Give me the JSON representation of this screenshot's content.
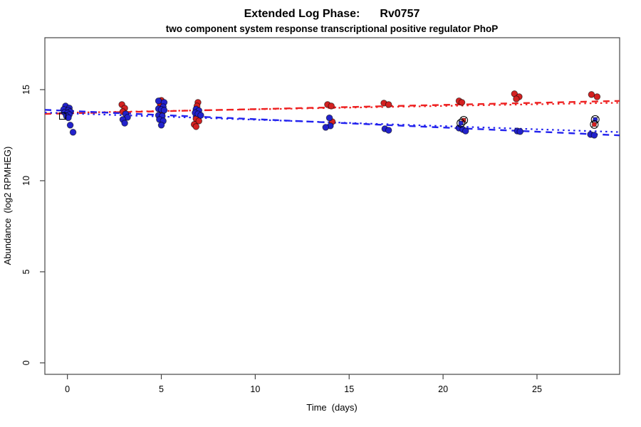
{
  "chart_data": {
    "type": "scatter",
    "title": "Extended Log Phase:      Rv0757",
    "title_left": "Extended Log Phase:",
    "title_right": "Rv0757",
    "subtitle": "two component system response transcriptional positive regulator PhoP",
    "xlabel": "Time  (days)",
    "xlabel_left": "Time",
    "xlabel_right": "(days)",
    "ylabel": "Abundance  (log2 RPMHEG)",
    "ylabel_left": "Abundance",
    "ylabel_right": "(log2 RPMHEG)",
    "xlim": [
      -1.2,
      29.4
    ],
    "ylim": [
      -0.63,
      17.85
    ],
    "x_ticks": [
      0,
      5,
      10,
      15,
      20,
      25
    ],
    "y_ticks": [
      0,
      5,
      10,
      15
    ],
    "grid": false,
    "colors": {
      "red_point": "#d42121",
      "blue_point": "#2222cc",
      "red_line": "#ee2222",
      "blue_line": "#2222ee",
      "frame": "#454545",
      "text": "#000000",
      "background": "#ffffff"
    },
    "trend_lines": [
      {
        "name": "red-dashed",
        "color_key": "red_line",
        "style": "dashed",
        "x": [
          -1.2,
          29.4
        ],
        "y": [
          13.67,
          14.38
        ]
      },
      {
        "name": "red-dotted",
        "color_key": "red_line",
        "style": "dotted",
        "x": [
          -1.2,
          29.4
        ],
        "y": [
          13.71,
          14.28
        ]
      },
      {
        "name": "blue-dashed",
        "color_key": "blue_line",
        "style": "dashed",
        "x": [
          -1.2,
          29.4
        ],
        "y": [
          13.89,
          12.49
        ]
      },
      {
        "name": "blue-dotted",
        "color_key": "blue_line",
        "style": "dotted",
        "x": [
          -1.2,
          29.4
        ],
        "y": [
          13.74,
          12.67
        ]
      }
    ],
    "series": [
      {
        "name": "red",
        "marker": "circle",
        "color_key": "red_point",
        "points": [
          [
            2.9,
            14.18
          ],
          [
            3.05,
            13.98
          ],
          [
            2.95,
            13.79
          ],
          [
            5.0,
            14.41
          ],
          [
            4.95,
            14.18
          ],
          [
            5.05,
            13.77
          ],
          [
            6.95,
            14.3
          ],
          [
            6.9,
            14.1
          ],
          [
            6.85,
            13.4
          ],
          [
            7.0,
            13.28
          ],
          [
            6.75,
            13.09
          ],
          [
            6.85,
            12.97
          ],
          [
            13.85,
            14.18
          ],
          [
            14.05,
            14.1
          ],
          [
            14.1,
            13.24
          ],
          [
            16.85,
            14.26
          ],
          [
            17.1,
            14.18
          ],
          [
            20.85,
            14.38
          ],
          [
            21.0,
            14.3
          ],
          [
            23.8,
            14.77
          ],
          [
            24.05,
            14.61
          ],
          [
            23.9,
            14.49
          ],
          [
            27.9,
            14.73
          ],
          [
            28.2,
            14.61
          ]
        ]
      },
      {
        "name": "blue",
        "marker": "circle",
        "color_key": "blue_point",
        "points": [
          [
            -0.1,
            14.1
          ],
          [
            0.1,
            13.99
          ],
          [
            -0.2,
            13.91
          ],
          [
            0.05,
            13.87
          ],
          [
            0.15,
            13.79
          ],
          [
            -0.15,
            13.75
          ],
          [
            0.0,
            13.71
          ],
          [
            0.1,
            13.63
          ],
          [
            -0.05,
            13.55
          ],
          [
            0.05,
            13.46
          ],
          [
            0.15,
            13.05
          ],
          [
            0.3,
            12.66
          ],
          [
            3.1,
            13.67
          ],
          [
            3.2,
            13.48
          ],
          [
            2.95,
            13.36
          ],
          [
            3.05,
            13.16
          ],
          [
            4.85,
            14.38
          ],
          [
            5.15,
            14.3
          ],
          [
            5.1,
            14.06
          ],
          [
            4.85,
            13.95
          ],
          [
            5.0,
            13.91
          ],
          [
            5.15,
            13.87
          ],
          [
            4.85,
            13.59
          ],
          [
            5.05,
            13.55
          ],
          [
            4.9,
            13.36
          ],
          [
            5.1,
            13.28
          ],
          [
            5.0,
            13.05
          ],
          [
            6.85,
            13.93
          ],
          [
            7.0,
            13.85
          ],
          [
            6.8,
            13.73
          ],
          [
            6.95,
            13.67
          ],
          [
            7.1,
            13.59
          ],
          [
            13.95,
            13.45
          ],
          [
            14.0,
            13.01
          ],
          [
            13.75,
            12.93
          ],
          [
            16.9,
            12.85
          ],
          [
            17.1,
            12.77
          ],
          [
            20.85,
            12.89
          ],
          [
            21.05,
            12.81
          ],
          [
            21.2,
            12.73
          ],
          [
            23.95,
            12.73
          ],
          [
            24.1,
            12.7
          ],
          [
            27.85,
            12.54
          ],
          [
            28.05,
            12.5
          ]
        ]
      }
    ],
    "special_markers": {
      "open_square": [
        [
          -0.25,
          13.55
        ]
      ],
      "circle_cross": [
        {
          "x": 21.1,
          "y": 13.32,
          "color": "red"
        },
        {
          "x": 20.95,
          "y": 13.16,
          "color": "blue"
        },
        {
          "x": 28.1,
          "y": 13.36,
          "color": "blue"
        },
        {
          "x": 28.05,
          "y": 13.09,
          "color": "red"
        }
      ]
    }
  }
}
